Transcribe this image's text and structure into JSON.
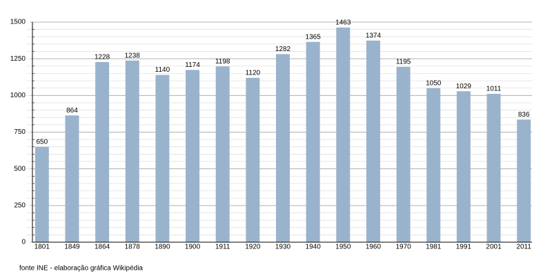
{
  "chart_data": {
    "type": "bar",
    "categories": [
      "1801",
      "1849",
      "1864",
      "1878",
      "1890",
      "1900",
      "1911",
      "1920",
      "1930",
      "1940",
      "1950",
      "1960",
      "1970",
      "1981",
      "1991",
      "2001",
      "2011"
    ],
    "values": [
      650,
      864,
      1228,
      1238,
      1140,
      1174,
      1198,
      1120,
      1282,
      1365,
      1463,
      1374,
      1195,
      1050,
      1029,
      1011,
      836
    ],
    "color": "#9ab3cd",
    "ylim": [
      0,
      1500
    ],
    "yticks": [
      0,
      250,
      500,
      750,
      1000,
      1250,
      1500
    ],
    "grid": true,
    "minor_grid_step": 50,
    "source": "fonte INE - elaboração gráfica Wikipédia"
  }
}
